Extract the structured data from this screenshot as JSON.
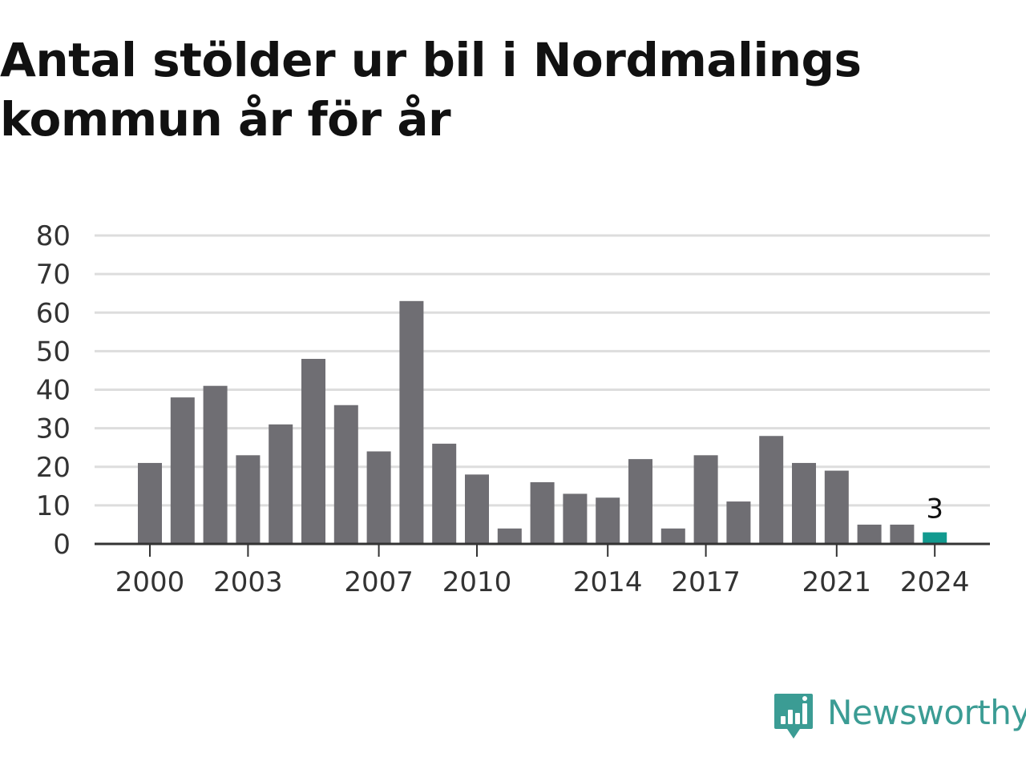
{
  "title": {
    "line1": "Antal stölder ur bil i Nordmalings",
    "line2": "kommun år för år"
  },
  "chart_data": {
    "type": "bar",
    "categories": [
      "2000",
      "2001",
      "2002",
      "2003",
      "2004",
      "2005",
      "2006",
      "2007",
      "2008",
      "2009",
      "2010",
      "2011",
      "2012",
      "2013",
      "2014",
      "2015",
      "2016",
      "2017",
      "2018",
      "2019",
      "2020",
      "2021",
      "2022",
      "2023",
      "2024"
    ],
    "values": [
      21,
      38,
      41,
      23,
      31,
      48,
      36,
      24,
      63,
      26,
      18,
      4,
      16,
      13,
      12,
      22,
      4,
      23,
      11,
      28,
      21,
      19,
      5,
      5,
      3
    ],
    "x_tick_labels": [
      "2000",
      "2003",
      "2007",
      "2010",
      "2014",
      "2017",
      "2021",
      "2024"
    ],
    "y_ticks": [
      0,
      10,
      20,
      30,
      40,
      50,
      60,
      70,
      80
    ],
    "ylim": [
      0,
      80
    ],
    "grid": true,
    "colors": {
      "bar": "#6f6e73",
      "highlight": "#129a8f",
      "grid": "#dddddd",
      "axis": "#333333"
    },
    "highlight": {
      "category": "2024",
      "label": "3"
    }
  },
  "brand": {
    "name": "Newsworthy",
    "icon": "newsworthy-logo-icon",
    "color": "#3b9c94"
  }
}
